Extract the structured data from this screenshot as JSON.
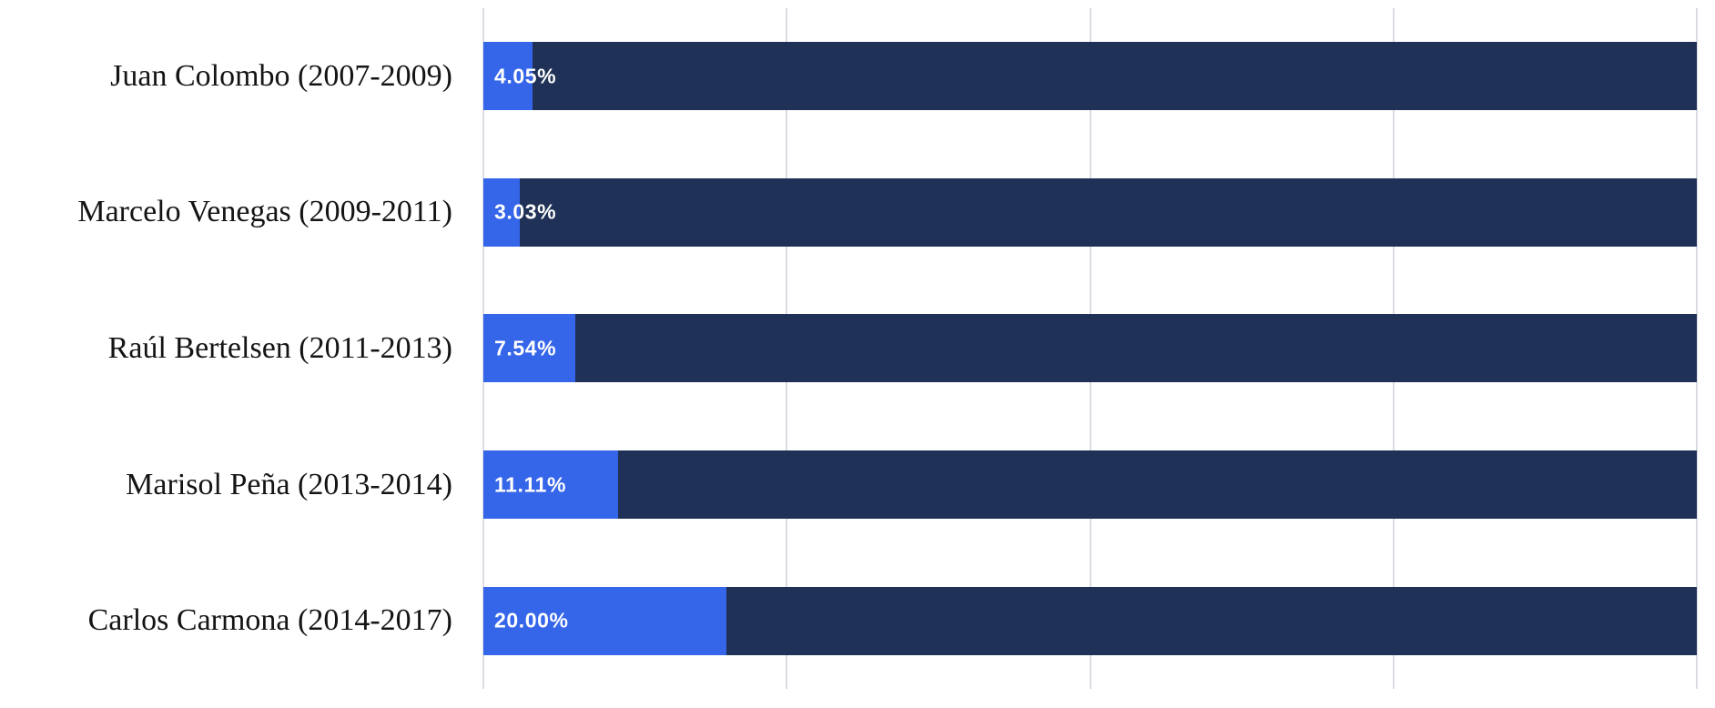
{
  "chart_data": {
    "type": "bar",
    "orientation": "horizontal",
    "stacked": true,
    "title": "",
    "xlabel": "",
    "ylabel": "",
    "categories": [
      "Juan Colombo (2007-2009)",
      "Marcelo Venegas (2009-2011)",
      "Raúl Bertelsen (2011-2013)",
      "Marisol Peña (2013-2014)",
      "Carlos Carmona (2014-2017)"
    ],
    "series": [
      {
        "name": "value",
        "values": [
          4.05,
          3.03,
          7.54,
          11.11,
          20.0
        ],
        "color": "#3565e9"
      },
      {
        "name": "remainder",
        "values": [
          95.95,
          96.97,
          92.46,
          88.89,
          80.0
        ],
        "color": "#1f3156"
      }
    ],
    "data_labels": [
      "4.05%",
      "3.03%",
      "7.54%",
      "11.11%",
      "20.00%"
    ],
    "xlim": [
      0,
      100
    ],
    "gridlines_pct": [
      0,
      25,
      50,
      75,
      100
    ],
    "grid": "vertical",
    "legend": "none"
  },
  "colors": {
    "value_segment": "#3565e9",
    "remainder_segment": "#1f3156",
    "gridline": "#dbdce2",
    "background": "#ffffff",
    "value_text": "#ffffff",
    "category_text": "#141414"
  }
}
